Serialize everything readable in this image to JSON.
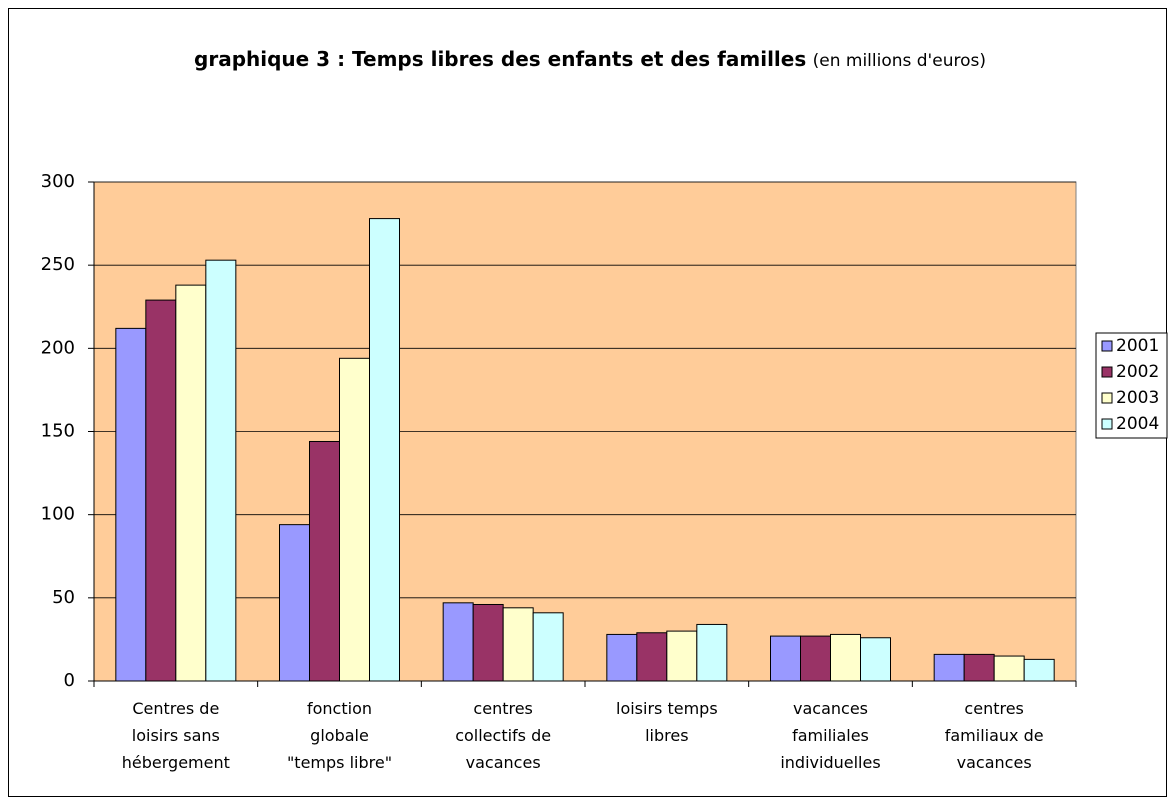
{
  "chart_data": {
    "type": "bar",
    "title": "graphique 3 : Temps libres des enfants et des familles",
    "subtitle": "(en millions d'euros)",
    "categories": [
      "Centres de loisirs sans hébergement",
      "fonction globale \"temps libre\"",
      "centres collectifs de vacances",
      "loisirs temps libres",
      "vacances familiales individuelles",
      "centres familiaux de vacances"
    ],
    "series": [
      {
        "name": "2001",
        "color": "#9999ff",
        "values": [
          212,
          94,
          47,
          28,
          27,
          16
        ]
      },
      {
        "name": "2002",
        "color": "#993366",
        "values": [
          229,
          144,
          46,
          29,
          27,
          16
        ]
      },
      {
        "name": "2003",
        "color": "#ffffcc",
        "values": [
          238,
          194,
          44,
          30,
          28,
          15
        ]
      },
      {
        "name": "2004",
        "color": "#ccffff",
        "values": [
          253,
          278,
          41,
          34,
          26,
          13
        ]
      }
    ],
    "ylim": [
      0,
      300
    ],
    "yticks": [
      0,
      50,
      100,
      150,
      200,
      250,
      300
    ],
    "grid": true,
    "plot_background": "#ffcc99",
    "legend": "right"
  }
}
